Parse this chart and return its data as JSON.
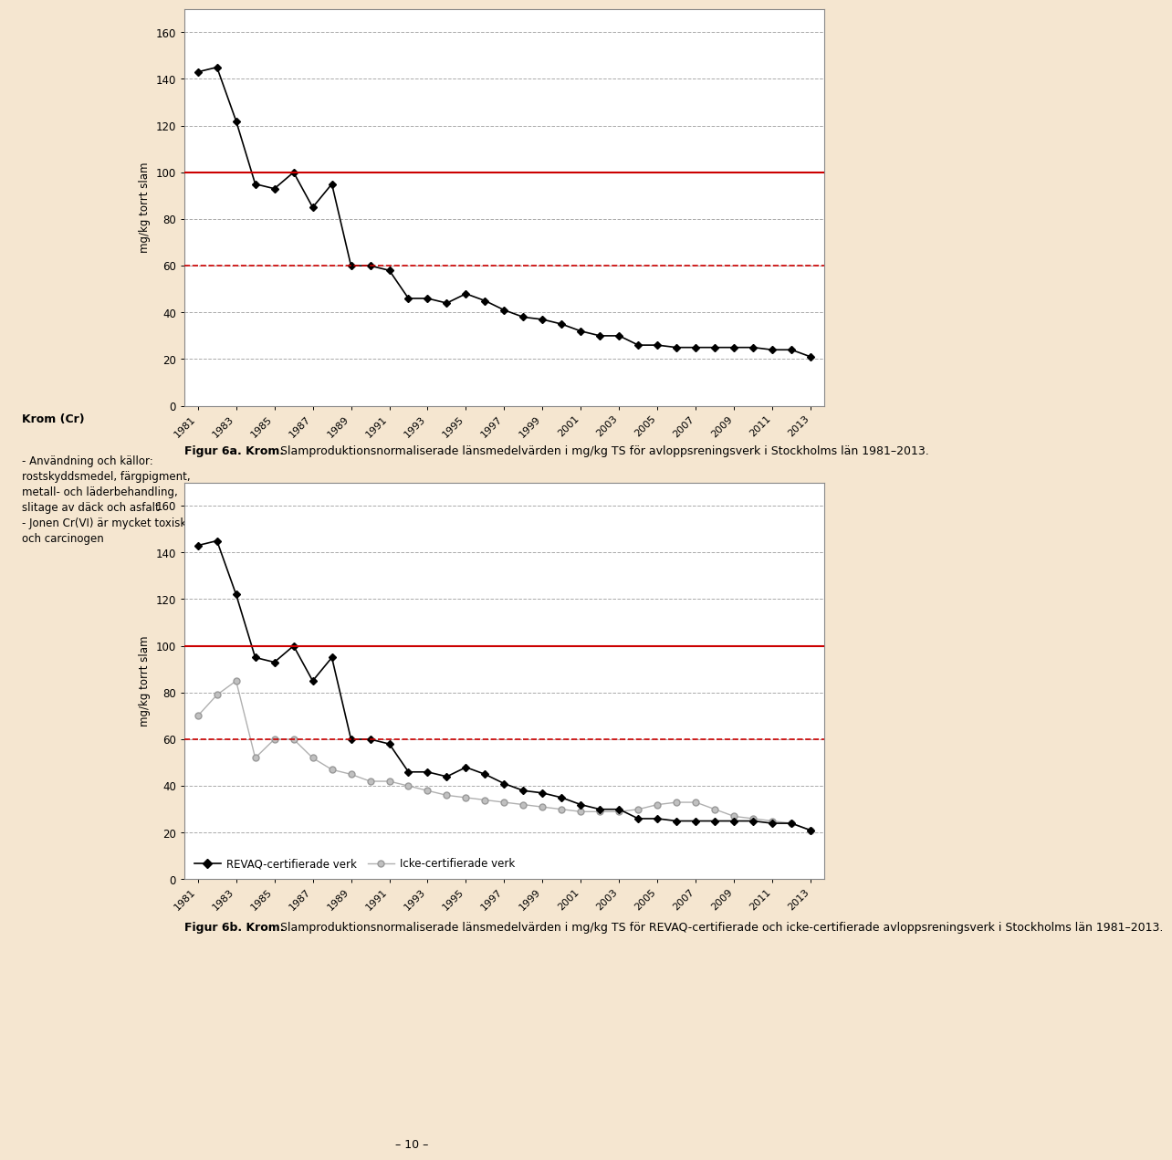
{
  "years": [
    1981,
    1982,
    1983,
    1984,
    1985,
    1986,
    1987,
    1988,
    1989,
    1990,
    1991,
    1992,
    1993,
    1994,
    1995,
    1996,
    1997,
    1998,
    1999,
    2000,
    2001,
    2002,
    2003,
    2004,
    2005,
    2006,
    2007,
    2008,
    2009,
    2010,
    2011,
    2012,
    2013
  ],
  "chart1_values": [
    143,
    145,
    122,
    95,
    93,
    100,
    85,
    95,
    60,
    60,
    58,
    46,
    46,
    44,
    48,
    45,
    41,
    38,
    37,
    35,
    32,
    30,
    30,
    26,
    26,
    25,
    25,
    25,
    25,
    25,
    24,
    24,
    21
  ],
  "chart2_revaq": [
    143,
    145,
    122,
    95,
    93,
    100,
    85,
    95,
    60,
    60,
    58,
    46,
    46,
    44,
    48,
    45,
    41,
    38,
    37,
    35,
    32,
    30,
    30,
    26,
    26,
    25,
    25,
    25,
    25,
    25,
    24,
    24,
    21
  ],
  "chart2_icke": [
    70,
    79,
    85,
    52,
    60,
    60,
    52,
    47,
    45,
    42,
    42,
    40,
    38,
    36,
    35,
    34,
    33,
    32,
    31,
    30,
    29,
    29,
    29,
    30,
    32,
    33,
    33,
    30,
    27,
    26,
    25,
    24,
    21
  ],
  "red_solid_line": 100,
  "red_dashed_line": 60,
  "ylabel": "mg/kg torrt slam",
  "ylim": [
    0,
    170
  ],
  "yticks": [
    0,
    20,
    40,
    60,
    80,
    100,
    120,
    140,
    160
  ],
  "xtick_years": [
    1981,
    1983,
    1985,
    1987,
    1989,
    1991,
    1993,
    1995,
    1997,
    1999,
    2001,
    2003,
    2005,
    2007,
    2009,
    2011,
    2013
  ],
  "caption1_bold": "Figur 6a. Krom.",
  "caption1_normal": " Slamproduktionsnormaliserade länsmedelvärden i mg/kg TS för avloppsreningsverk i Stockholms län 1981–2013.",
  "caption2_bold": "Figur 6b. Krom.",
  "caption2_normal": " Slamproduktionsnormaliserade länsmedelvärden i mg/kg TS för REVAQ-certifierade och icke-certifierade avloppsreningsverk i Stockholms län 1981–2013.",
  "legend2_revaq": "REVAQ-certifierade verk",
  "legend2_icke": "Icke-certifierade verk",
  "left_title": "Krom (Cr)",
  "left_body": "- Användning och källor:\nrostskyddsmedel, färgpigment,\nmetall- och läderbehandling,\nslitage av däck och asfalt\n- Jonen Cr(VI) är mycket toxisk\noch carcinogen",
  "bg_color": "#f5e6d0",
  "left_bar_color": "#c07030",
  "page_number": "– 10 –"
}
